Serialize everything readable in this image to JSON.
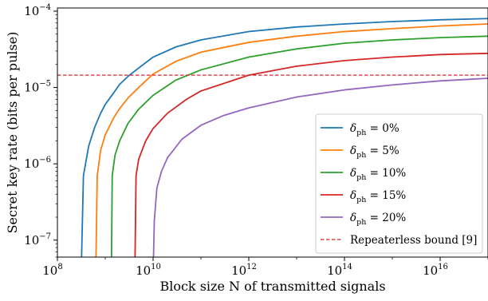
{
  "chart_data": {
    "type": "line",
    "title": "",
    "xlabel": "Block size N of transmitted signals",
    "ylabel": "Secret key rate (bits per pulse)",
    "x_scale": "log",
    "y_scale": "log",
    "xlim": [
      100000000.0,
      1e+17
    ],
    "ylim": [
      6e-08,
      0.00011
    ],
    "x_ticks": [
      {
        "base": "10",
        "exp": "8"
      },
      {
        "base": "10",
        "exp": "10"
      },
      {
        "base": "10",
        "exp": "12"
      },
      {
        "base": "10",
        "exp": "14"
      },
      {
        "base": "10",
        "exp": "16"
      }
    ],
    "y_ticks": [
      {
        "base": "10",
        "exp": "−7",
        "value": 1e-07
      },
      {
        "base": "10",
        "exp": "−6",
        "value": 1e-06
      },
      {
        "base": "10",
        "exp": "−5",
        "value": 1e-05
      },
      {
        "base": "10",
        "exp": "−4",
        "value": 0.0001
      }
    ],
    "grid": false,
    "legend_position": "bottom-right",
    "series": [
      {
        "name": "δph = 0%",
        "legend_symbol": "δ",
        "legend_sub": "ph",
        "legend_rest": " = 0%",
        "color": "#1f77b4",
        "style": "solid",
        "x": [
          320000000.0,
          350000000.0,
          450000000.0,
          600000000.0,
          800000000.0,
          1000000000.0,
          1500000000.0,
          2000000000.0,
          3000000000.0,
          5000000000.0,
          10000000000.0,
          30000000000.0,
          100000000000.0,
          1000000000000.0,
          10000000000000.0,
          100000000000000.0,
          1000000000000000.0,
          1e+16,
          1e+17
        ],
        "y": [
          6e-08,
          7e-07,
          1.7e-06,
          3e-06,
          4.6e-06,
          6e-06,
          8.5e-06,
          1.1e-05,
          1.4e-05,
          1.8e-05,
          2.5e-05,
          3.4e-05,
          4.2e-05,
          5.4e-05,
          6.2e-05,
          6.8e-05,
          7.3e-05,
          7.7e-05,
          8e-05
        ]
      },
      {
        "name": "δph = 5%",
        "legend_symbol": "δ",
        "legend_sub": "ph",
        "legend_rest": " = 5%",
        "color": "#ff7f0e",
        "style": "solid",
        "x": [
          640000000.0,
          680000000.0,
          800000000.0,
          1000000000.0,
          1500000000.0,
          2000000000.0,
          3000000000.0,
          5000000000.0,
          10000000000.0,
          30000000000.0,
          100000000000.0,
          1000000000000.0,
          10000000000000.0,
          100000000000000.0,
          1000000000000000.0,
          1e+16,
          1e+17
        ],
        "y": [
          6e-08,
          7e-07,
          1.5e-06,
          2.4e-06,
          4e-06,
          5.3e-06,
          7.3e-06,
          1e-05,
          1.5e-05,
          2.2e-05,
          2.9e-05,
          3.9e-05,
          4.7e-05,
          5.4e-05,
          5.9e-05,
          6.4e-05,
          6.8e-05
        ]
      },
      {
        "name": "δph = 10%",
        "legend_symbol": "δ",
        "legend_sub": "ph",
        "legend_rest": " = 10%",
        "color": "#2ca02c",
        "style": "solid",
        "x": [
          1350000000.0,
          1400000000.0,
          1600000000.0,
          2000000000.0,
          3000000000.0,
          5000000000.0,
          10000000000.0,
          30000000000.0,
          100000000000.0,
          1000000000000.0,
          10000000000000.0,
          100000000000000.0,
          1000000000000000.0,
          1e+16,
          1e+17
        ],
        "y": [
          6e-08,
          7e-07,
          1.3e-06,
          2e-06,
          3.4e-06,
          5.2e-06,
          7.9e-06,
          1.25e-05,
          1.7e-05,
          2.5e-05,
          3.2e-05,
          3.8e-05,
          4.2e-05,
          4.5e-05,
          4.7e-05
        ]
      },
      {
        "name": "δph = 15%",
        "legend_symbol": "δ",
        "legend_sub": "ph",
        "legend_rest": " = 15%",
        "color": "#d62728",
        "style": "solid",
        "x": [
          4200000000.0,
          4400000000.0,
          5000000000.0,
          7000000000.0,
          10000000000.0,
          20000000000.0,
          50000000000.0,
          100000000000.0,
          1000000000000.0,
          10000000000000.0,
          100000000000000.0,
          1000000000000000.0,
          1e+16,
          1e+17
        ],
        "y": [
          6e-08,
          7e-07,
          1.15e-06,
          2e-06,
          2.9e-06,
          4.6e-06,
          7e-06,
          9e-06,
          1.45e-05,
          1.9e-05,
          2.25e-05,
          2.5e-05,
          2.7e-05,
          2.8e-05
        ]
      },
      {
        "name": "δph = 20%",
        "legend_symbol": "δ",
        "legend_sub": "ph",
        "legend_rest": " = 20%",
        "color": "#9467bd",
        "style": "solid",
        "x": [
          10200000000.0,
          10600000000.0,
          12000000000.0,
          15000000000.0,
          20000000000.0,
          40000000000.0,
          100000000000.0,
          300000000000.0,
          1000000000000.0,
          10000000000000.0,
          100000000000000.0,
          1000000000000000.0,
          1e+16,
          1e+17
        ],
        "y": [
          6e-08,
          1.8e-07,
          4.8e-07,
          8e-07,
          1.2e-06,
          2.1e-06,
          3.2e-06,
          4.3e-06,
          5.4e-06,
          7.5e-06,
          9.3e-06,
          1.08e-05,
          1.22e-05,
          1.32e-05
        ]
      },
      {
        "name": "Repeaterless bound [9]",
        "color": "#d62728",
        "style": "dashed",
        "x": [
          100000000.0,
          1e+17
        ],
        "y": [
          1.45e-05,
          1.45e-05
        ]
      }
    ]
  }
}
